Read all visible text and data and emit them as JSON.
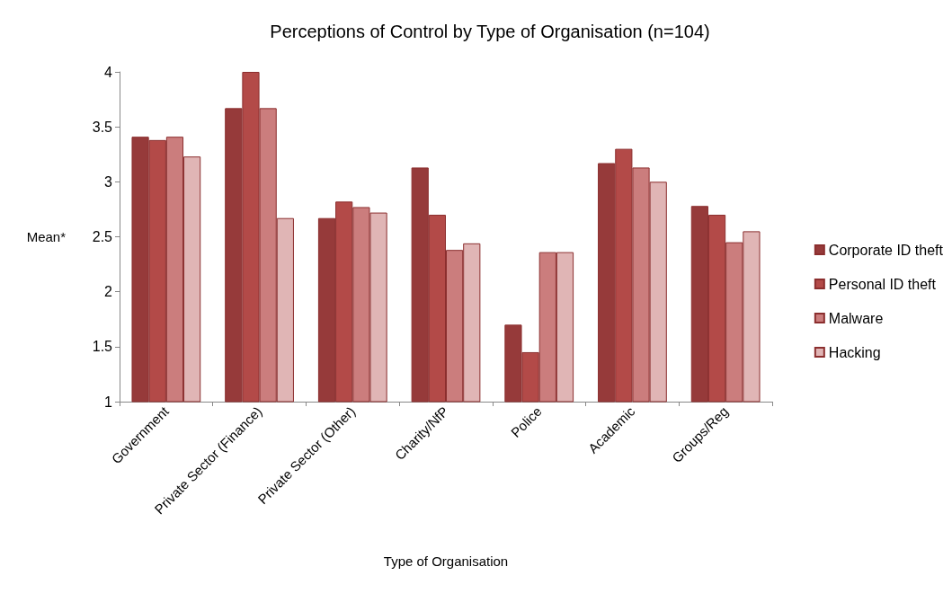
{
  "chart_data": {
    "type": "bar",
    "title": "Perceptions of Control by Type of Organisation (n=104)",
    "xlabel": "Type of Organisation",
    "ylabel": "Mean*",
    "categories": [
      "Government",
      "Private Sector (Finance)",
      "Private Sector (Other)",
      "Charity/NfP",
      "Police",
      "Academic",
      "Groups/Reg"
    ],
    "series": [
      {
        "name": "Corporate ID theft",
        "color": "#963a3a",
        "values": [
          3.41,
          3.67,
          2.67,
          3.13,
          1.7,
          3.17,
          2.78
        ]
      },
      {
        "name": "Personal ID theft",
        "color": "#b34a48",
        "values": [
          3.38,
          4.0,
          2.82,
          2.7,
          1.45,
          3.3,
          2.7
        ]
      },
      {
        "name": "Malware",
        "color": "#cb7d7d",
        "values": [
          3.41,
          3.67,
          2.77,
          2.38,
          2.36,
          3.13,
          2.45
        ]
      },
      {
        "name": "Hacking",
        "color": "#e0b5b5",
        "values": [
          3.23,
          2.67,
          2.72,
          2.44,
          2.36,
          3.0,
          2.55
        ]
      }
    ],
    "ylim": [
      1,
      4
    ],
    "yticks": [
      1,
      1.5,
      2,
      2.5,
      3,
      3.5,
      4
    ],
    "grid": false,
    "legend": "right"
  }
}
